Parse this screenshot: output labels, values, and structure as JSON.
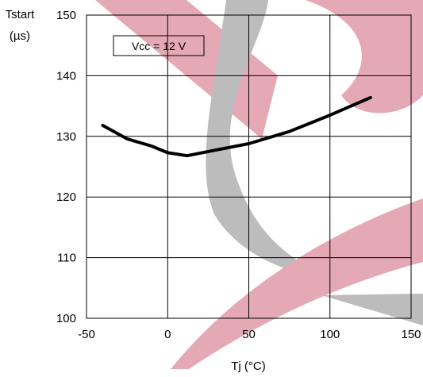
{
  "chart_data": {
    "type": "line",
    "title": "",
    "xlabel": "Tj  (°C)",
    "ylabel_line1": "Tstart",
    "ylabel_line2": "(µs)",
    "xlim": [
      -50,
      150
    ],
    "ylim": [
      100,
      150
    ],
    "xticks": [
      -50,
      0,
      50,
      100,
      150
    ],
    "yticks": [
      100,
      110,
      120,
      130,
      140,
      150
    ],
    "xtick_labels": [
      "-50",
      "0",
      "50",
      "100",
      "150"
    ],
    "ytick_labels": [
      "100",
      "110",
      "120",
      "130",
      "140",
      "150"
    ],
    "grid": true,
    "annotation": "Vcc = 12 V",
    "series": [
      {
        "x": [
          -40,
          -25,
          -10,
          0,
          12,
          25,
          50,
          75,
          100,
          125
        ],
        "values": [
          131.8,
          129.6,
          128.4,
          127.3,
          126.8,
          127.5,
          128.8,
          130.8,
          133.5,
          136.4
        ],
        "color": "#000000"
      }
    ],
    "watermark_colors": [
      "#e4a9b5",
      "#bcbcbc"
    ]
  }
}
